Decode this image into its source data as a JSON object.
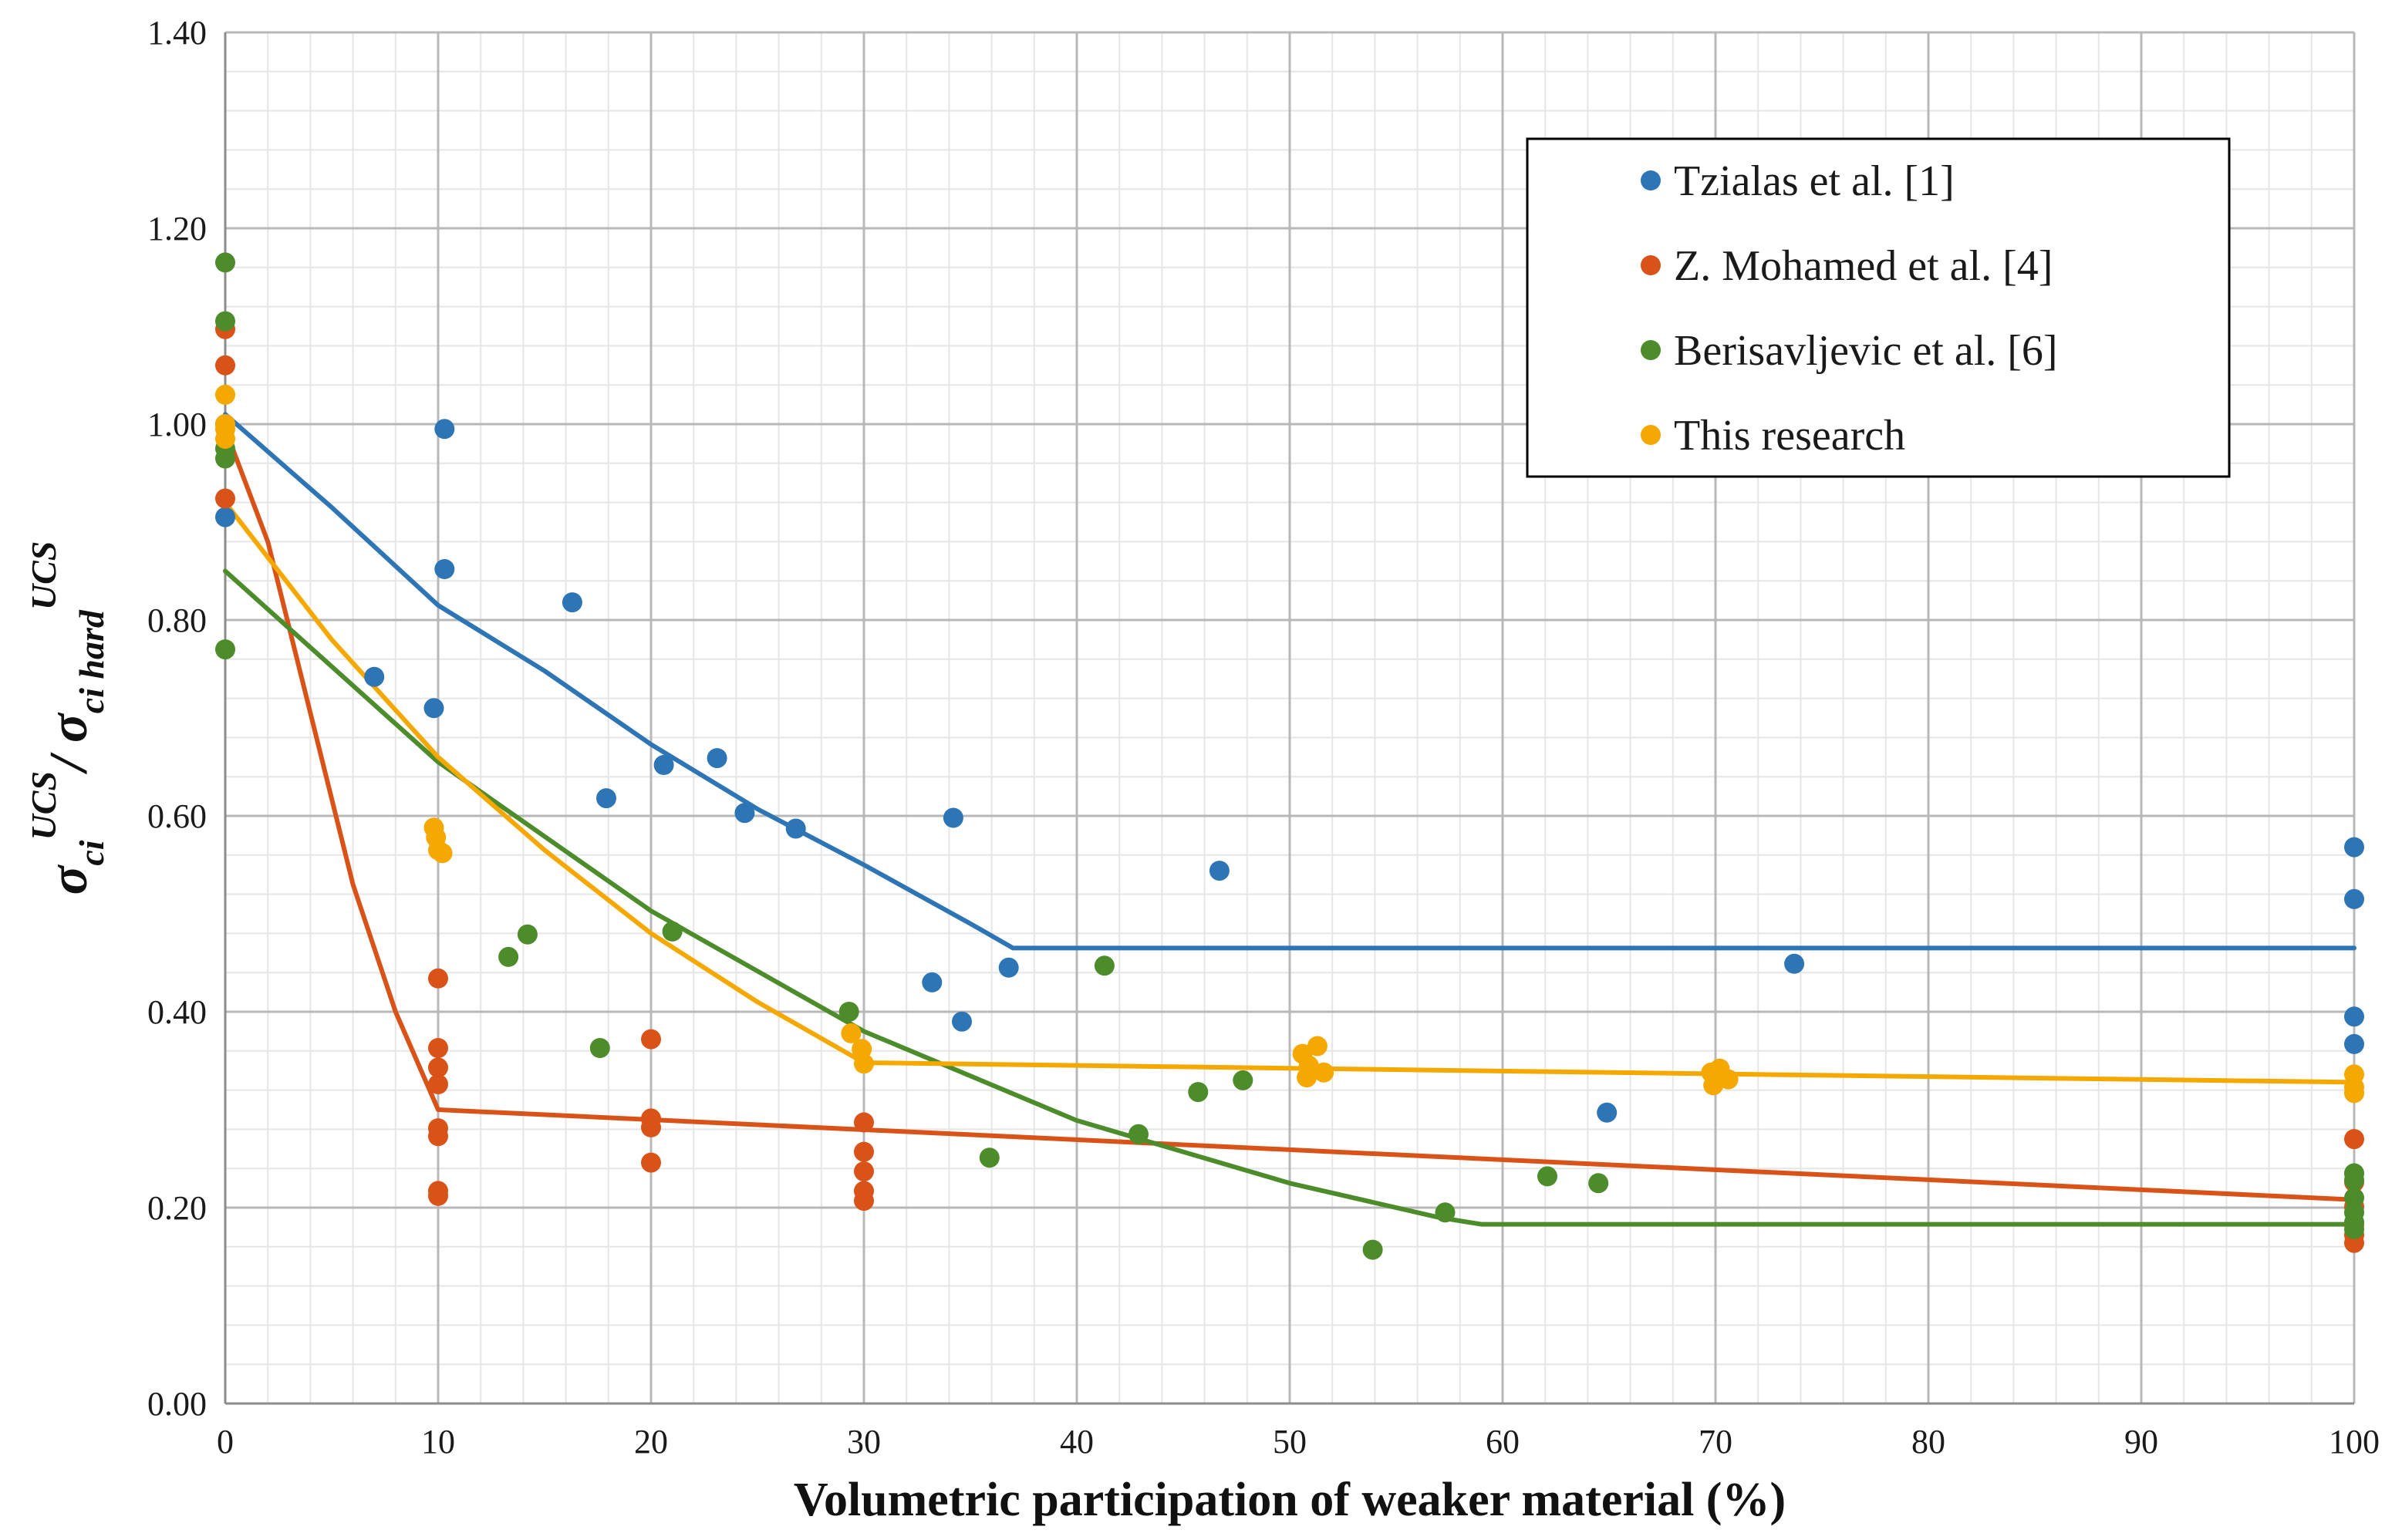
{
  "chart_data": {
    "type": "scatter",
    "title": "",
    "xlabel": "Volumetric participation of weaker material (%)",
    "ylabel_parts": {
      "sigma": "σ",
      "ci": "ci",
      "sup": "UCS",
      "slash": "/ ",
      "ci_hard": "ci hard"
    },
    "xlim": [
      0,
      100
    ],
    "ylim": [
      0,
      1.4
    ],
    "x_ticks": [
      0,
      10,
      20,
      30,
      40,
      50,
      60,
      70,
      80,
      90,
      100
    ],
    "x_tick_labels": [
      "0",
      "10",
      "20",
      "30",
      "40",
      "50",
      "60",
      "70",
      "80",
      "90",
      "100"
    ],
    "y_ticks": [
      0,
      0.2,
      0.4,
      0.6,
      0.8,
      1.0,
      1.2,
      1.4
    ],
    "y_tick_labels": [
      "0.00",
      "0.20",
      "0.40",
      "0.60",
      "0.80",
      "1.00",
      "1.20",
      "1.40"
    ],
    "grid": true,
    "legend_position": "top-right",
    "series": [
      {
        "name": "Tzialas et al. [1]",
        "color": "#2E75B6",
        "points": [
          [
            0,
            1.0
          ],
          [
            0,
            0.905
          ],
          [
            7,
            0.742
          ],
          [
            9.8,
            0.71
          ],
          [
            10.3,
            0.995
          ],
          [
            10.3,
            0.852
          ],
          [
            16.3,
            0.818
          ],
          [
            17.9,
            0.618
          ],
          [
            20.6,
            0.652
          ],
          [
            23.1,
            0.659
          ],
          [
            24.4,
            0.603
          ],
          [
            26.8,
            0.587
          ],
          [
            33.2,
            0.43
          ],
          [
            34.2,
            0.598
          ],
          [
            34.6,
            0.39
          ],
          [
            36.8,
            0.445
          ],
          [
            46.7,
            0.544
          ],
          [
            64.9,
            0.297
          ],
          [
            73.7,
            0.449
          ],
          [
            100,
            0.568
          ],
          [
            100,
            0.515
          ],
          [
            100,
            0.395
          ],
          [
            100,
            0.367
          ]
        ],
        "trend": [
          [
            0,
            1.01
          ],
          [
            5,
            0.915
          ],
          [
            10,
            0.815
          ],
          [
            15,
            0.748
          ],
          [
            20,
            0.673
          ],
          [
            25,
            0.607
          ],
          [
            30,
            0.55
          ],
          [
            35,
            0.49
          ],
          [
            37,
            0.465
          ],
          [
            100,
            0.465
          ]
        ]
      },
      {
        "name": "Z. Mohamed et al. [4]",
        "color": "#D95319",
        "points": [
          [
            0,
            1.097
          ],
          [
            0,
            1.06
          ],
          [
            0,
            0.924
          ],
          [
            10,
            0.434
          ],
          [
            10,
            0.363
          ],
          [
            10,
            0.343
          ],
          [
            10,
            0.326
          ],
          [
            10,
            0.281
          ],
          [
            10,
            0.273
          ],
          [
            10,
            0.217
          ],
          [
            10,
            0.212
          ],
          [
            20,
            0.372
          ],
          [
            20,
            0.291
          ],
          [
            20,
            0.282
          ],
          [
            20,
            0.246
          ],
          [
            30,
            0.287
          ],
          [
            30,
            0.257
          ],
          [
            30,
            0.237
          ],
          [
            30,
            0.217
          ],
          [
            30,
            0.207
          ],
          [
            100,
            0.27
          ],
          [
            100,
            0.226
          ],
          [
            100,
            0.201
          ],
          [
            100,
            0.183
          ],
          [
            100,
            0.172
          ],
          [
            100,
            0.164
          ]
        ],
        "trend": [
          [
            0,
            0.995
          ],
          [
            2,
            0.88
          ],
          [
            4,
            0.705
          ],
          [
            6,
            0.53
          ],
          [
            8,
            0.4
          ],
          [
            10,
            0.3
          ],
          [
            100,
            0.208
          ]
        ]
      },
      {
        "name": "Berisavljevic et al. [6]",
        "color": "#4C8C2B",
        "points": [
          [
            0,
            1.165
          ],
          [
            0,
            1.105
          ],
          [
            0,
            0.975
          ],
          [
            0,
            0.965
          ],
          [
            0,
            0.77
          ],
          [
            13.3,
            0.456
          ],
          [
            14.2,
            0.479
          ],
          [
            17.6,
            0.363
          ],
          [
            21,
            0.482
          ],
          [
            29.3,
            0.4
          ],
          [
            35.9,
            0.251
          ],
          [
            41.3,
            0.447
          ],
          [
            42.9,
            0.275
          ],
          [
            45.7,
            0.318
          ],
          [
            47.8,
            0.33
          ],
          [
            53.9,
            0.157
          ],
          [
            57.3,
            0.195
          ],
          [
            62.1,
            0.232
          ],
          [
            64.5,
            0.225
          ],
          [
            100,
            0.235
          ],
          [
            100,
            0.228
          ],
          [
            100,
            0.21
          ],
          [
            100,
            0.195
          ],
          [
            100,
            0.185
          ],
          [
            100,
            0.178
          ]
        ],
        "trend": [
          [
            0,
            0.85
          ],
          [
            10,
            0.655
          ],
          [
            20,
            0.503
          ],
          [
            30,
            0.38
          ],
          [
            40,
            0.289
          ],
          [
            50,
            0.225
          ],
          [
            57,
            0.19
          ],
          [
            59,
            0.183
          ],
          [
            100,
            0.183
          ]
        ]
      },
      {
        "name": "This research",
        "color": "#F5A800",
        "points": [
          [
            0,
            1.03
          ],
          [
            0,
            1.0
          ],
          [
            0,
            0.995
          ],
          [
            0,
            0.985
          ],
          [
            9.8,
            0.588
          ],
          [
            9.9,
            0.578
          ],
          [
            10,
            0.565
          ],
          [
            10.2,
            0.562
          ],
          [
            29.4,
            0.378
          ],
          [
            29.9,
            0.362
          ],
          [
            30,
            0.347
          ],
          [
            50.6,
            0.357
          ],
          [
            50.9,
            0.345
          ],
          [
            50.8,
            0.333
          ],
          [
            51.3,
            0.365
          ],
          [
            51.6,
            0.338
          ],
          [
            69.8,
            0.338
          ],
          [
            69.9,
            0.325
          ],
          [
            70.2,
            0.342
          ],
          [
            70.6,
            0.331
          ],
          [
            100,
            0.336
          ],
          [
            100,
            0.323
          ],
          [
            100,
            0.317
          ]
        ],
        "trend": [
          [
            0,
            0.92
          ],
          [
            5,
            0.78
          ],
          [
            10,
            0.66
          ],
          [
            15,
            0.565
          ],
          [
            20,
            0.48
          ],
          [
            25,
            0.41
          ],
          [
            30,
            0.348
          ],
          [
            100,
            0.328
          ]
        ]
      }
    ]
  }
}
